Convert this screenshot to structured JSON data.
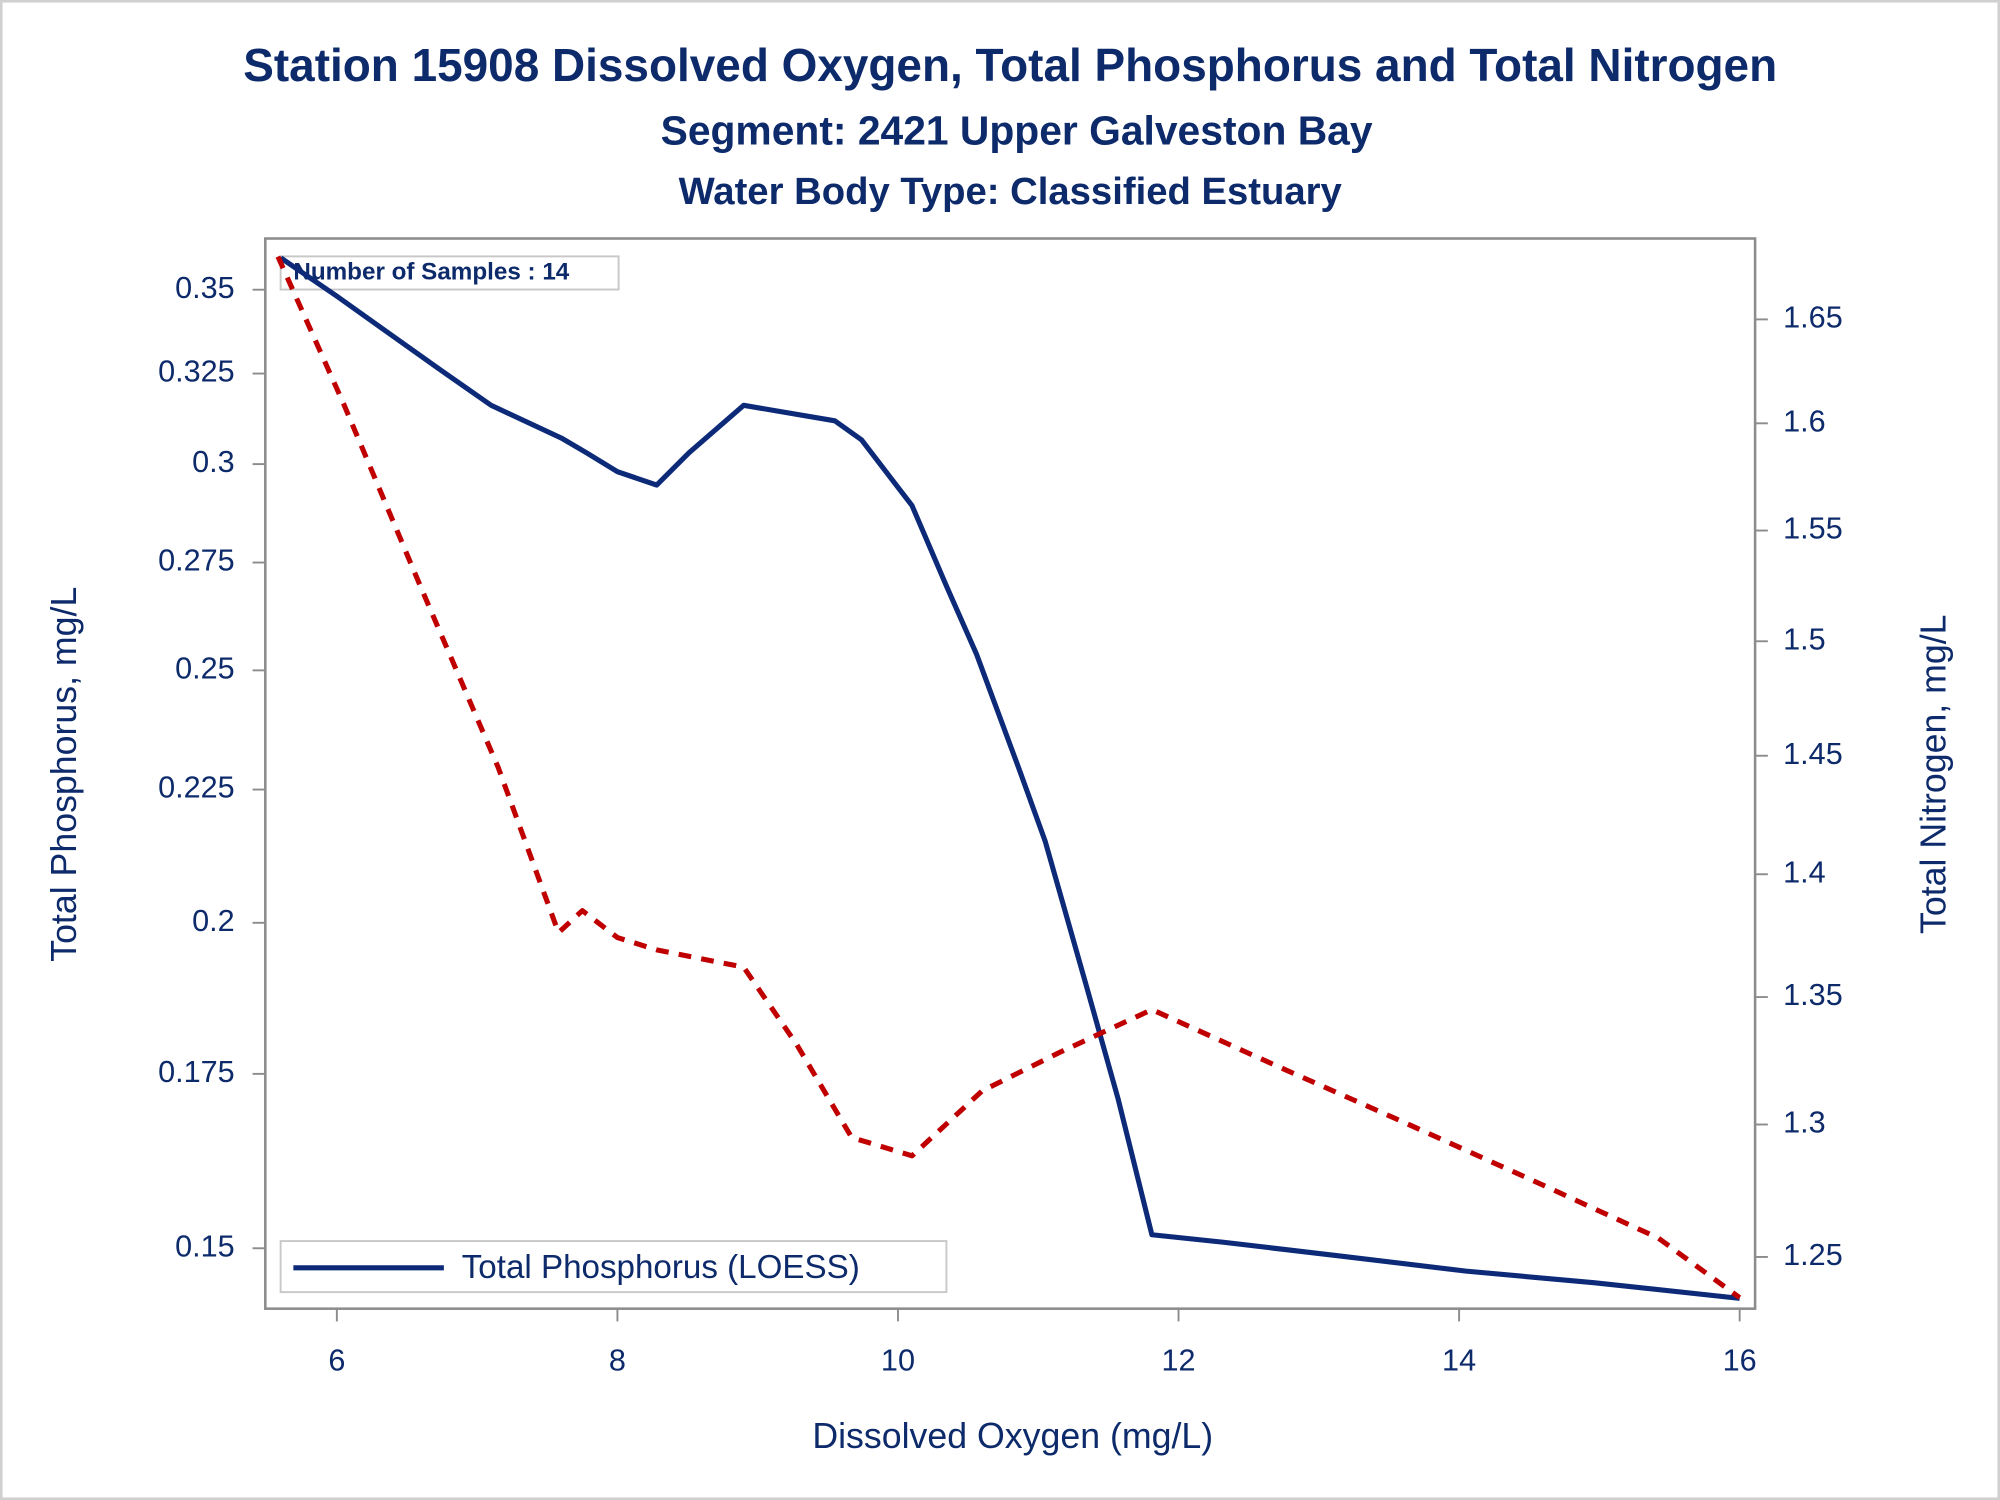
{
  "chart_data": {
    "type": "line",
    "title": "Station 15908  Dissolved Oxygen, Total Phosphorus and Total Nitrogen",
    "subtitle": "Segment: 2421  Upper Galveston Bay",
    "subtitle2": "Water Body Type: Classified Estuary",
    "x_label": "Dissolved Oxygen (mg/L)",
    "y_label": "Total Phosphorus, mg/L",
    "y2_label": "Total Nitrogen, mg/L",
    "annotation": "Number of Samples : 14",
    "xlim": [
      5.49,
      16.11
    ],
    "xticks": [
      6,
      8,
      10,
      12,
      14,
      16
    ],
    "ylim": [
      0.1422,
      0.3662
    ],
    "yticks": [
      0.15,
      0.175,
      0.2,
      0.225,
      0.25,
      0.275,
      0.3,
      0.325,
      0.35
    ],
    "yscale": "log",
    "y2lim": [
      1.231,
      1.69
    ],
    "y2ticks": [
      1.25,
      1.3,
      1.35,
      1.4,
      1.45,
      1.5,
      1.55,
      1.6,
      1.65
    ],
    "y2scale": "log",
    "legend": "bottom-left",
    "series": [
      {
        "name": "Total Phosphorus (LOESS)",
        "color": "#0c2a78",
        "dash": "solid",
        "x": [
          5.6,
          6.0,
          6.33,
          6.74,
          7.1,
          7.6,
          7.78,
          8.0,
          8.28,
          8.51,
          8.9,
          9.55,
          9.74,
          10.1,
          10.35,
          10.56,
          10.87,
          11.05,
          11.34,
          11.57,
          11.81,
          12.32,
          13.14,
          14.05,
          14.96,
          16.0
        ],
        "values": [
          0.36,
          0.348,
          0.338,
          0.326,
          0.316,
          0.307,
          0.303,
          0.298,
          0.2945,
          0.303,
          0.316,
          0.3117,
          0.3065,
          0.2892,
          0.269,
          0.2536,
          0.2286,
          0.2149,
          0.1894,
          0.1711,
          0.1518,
          0.1508,
          0.149,
          0.147,
          0.1455,
          0.1435
        ]
      },
      {
        "color": "#c00000",
        "dash": "dashed",
        "axis": "y2",
        "x": [
          5.58,
          6.05,
          6.6,
          7.15,
          7.58,
          7.75,
          8.0,
          8.28,
          8.9,
          9.28,
          9.67,
          10.1,
          10.6,
          11.15,
          11.81,
          12.69,
          13.6,
          14.51,
          15.42,
          16.0
        ],
        "values": [
          1.681,
          1.609,
          1.524,
          1.445,
          1.376,
          1.385,
          1.374,
          1.369,
          1.362,
          1.331,
          1.295,
          1.288,
          1.313,
          1.328,
          1.345,
          1.323,
          1.301,
          1.279,
          1.257,
          1.235
        ]
      }
    ]
  }
}
